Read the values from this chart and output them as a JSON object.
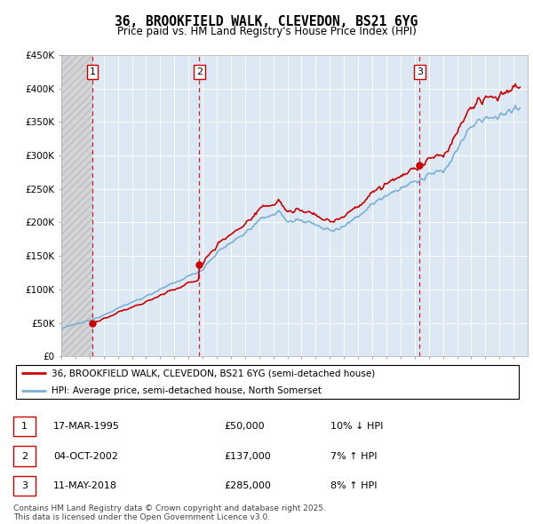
{
  "title": "36, BROOKFIELD WALK, CLEVEDON, BS21 6YG",
  "subtitle": "Price paid vs. HM Land Registry's House Price Index (HPI)",
  "ylim": [
    0,
    450000
  ],
  "yticks": [
    0,
    50000,
    100000,
    150000,
    200000,
    250000,
    300000,
    350000,
    400000,
    450000
  ],
  "ytick_labels": [
    "£0",
    "£50K",
    "£100K",
    "£150K",
    "£200K",
    "£250K",
    "£300K",
    "£350K",
    "£400K",
    "£450K"
  ],
  "sale_dates": [
    "1995-03-17",
    "2002-10-04",
    "2018-05-11"
  ],
  "sale_prices": [
    50000,
    137000,
    285000
  ],
  "sale_labels": [
    "1",
    "2",
    "3"
  ],
  "hpi_color": "#7bafd4",
  "price_color": "#cc0000",
  "sale_vline_color": "#cc0000",
  "legend_entries": [
    "36, BROOKFIELD WALK, CLEVEDON, BS21 6YG (semi-detached house)",
    "HPI: Average price, semi-detached house, North Somerset"
  ],
  "table_rows": [
    [
      "1",
      "17-MAR-1995",
      "£50,000",
      "10% ↓ HPI"
    ],
    [
      "2",
      "04-OCT-2002",
      "£137,000",
      "7% ↑ HPI"
    ],
    [
      "3",
      "11-MAY-2018",
      "£285,000",
      "8% ↑ HPI"
    ]
  ],
  "footnote": "Contains HM Land Registry data © Crown copyright and database right 2025.\nThis data is licensed under the Open Government Licence v3.0.",
  "plot_bg_color": "#dde8f5",
  "hatch_color": "#c8c8c8"
}
